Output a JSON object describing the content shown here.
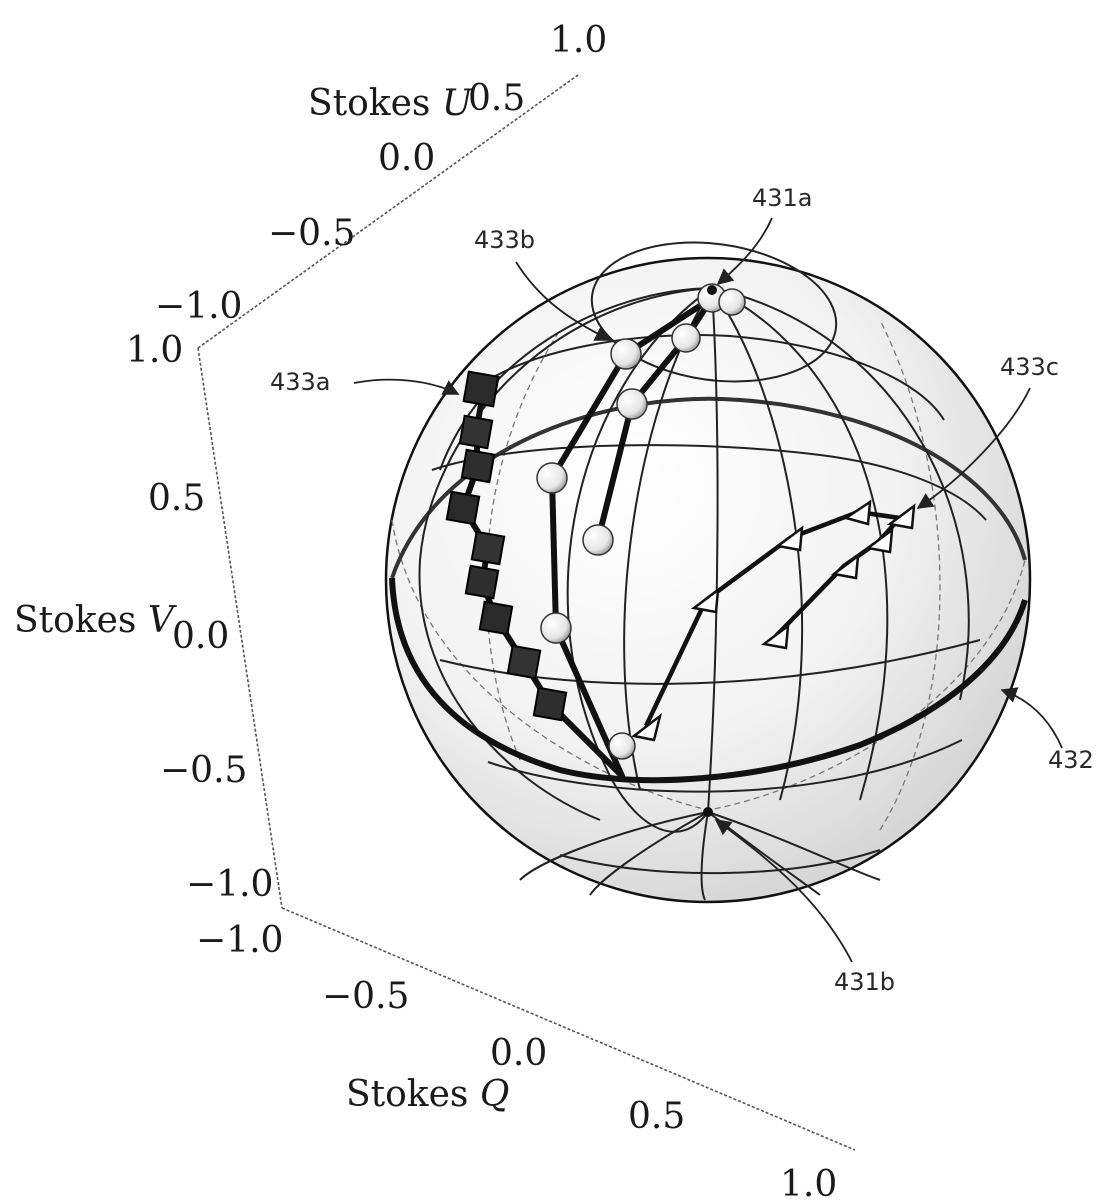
{
  "axes": {
    "u": {
      "title": "Stokes ",
      "symbol": "U",
      "ticks": [
        "1.0",
        "0.5",
        "0.0",
        "−0.5",
        "−1.0"
      ]
    },
    "v": {
      "title": "Stokes ",
      "symbol": "V",
      "ticks": [
        "1.0",
        "0.5",
        "0.0",
        "−0.5",
        "−1.0"
      ]
    },
    "q": {
      "title": "Stokes ",
      "symbol": "Q",
      "ticks": [
        "−1.0",
        "−0.5",
        "0.0",
        "0.5",
        "1.0"
      ]
    }
  },
  "labels": {
    "pole_top": "431a",
    "pole_bottom": "431b",
    "equator": "432",
    "series_a": "433a",
    "series_b": "433b",
    "series_c": "433c"
  },
  "markers": {
    "series_a": "cube",
    "series_b": "sphere",
    "series_c": "cone"
  }
}
